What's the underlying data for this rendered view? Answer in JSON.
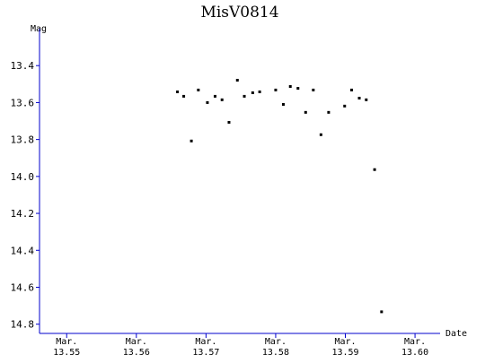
{
  "chart_data": {
    "type": "scatter",
    "title": "MisV0814",
    "ylabel": "Mag",
    "xlabel": "Date",
    "color": "#000000",
    "axis_color": "#0000cc",
    "invert_y": true,
    "xlim": [
      13.5461,
      13.6036
    ],
    "ylim": [
      13.2,
      14.85
    ],
    "xticks": [
      {
        "value": 13.55,
        "label": "Mar.\n13.55"
      },
      {
        "value": 13.56,
        "label": "Mar.\n13.56"
      },
      {
        "value": 13.57,
        "label": "Mar.\n13.57"
      },
      {
        "value": 13.58,
        "label": "Mar.\n13.58"
      },
      {
        "value": 13.59,
        "label": "Mar.\n13.59"
      },
      {
        "value": 13.6,
        "label": "Mar.\n13.60"
      }
    ],
    "yticks": [
      {
        "value": 13.4,
        "label": "13.4"
      },
      {
        "value": 13.6,
        "label": "13.6"
      },
      {
        "value": 13.8,
        "label": "13.8"
      },
      {
        "value": 14.0,
        "label": "14.0"
      },
      {
        "value": 14.2,
        "label": "14.2"
      },
      {
        "value": 14.4,
        "label": "14.4"
      },
      {
        "value": 14.6,
        "label": "14.6"
      },
      {
        "value": 14.8,
        "label": "14.8"
      }
    ],
    "x": [
      13.5659,
      13.5668,
      13.5679,
      13.5689,
      13.5702,
      13.5713,
      13.5723,
      13.5733,
      13.5745,
      13.5755,
      13.5767,
      13.5777,
      13.58,
      13.5811,
      13.5821,
      13.5832,
      13.5843,
      13.5854,
      13.5865,
      13.5876,
      13.5899,
      13.5909,
      13.592,
      13.593,
      13.5942,
      13.5952
    ],
    "values": [
      13.542,
      13.566,
      13.808,
      13.532,
      13.6,
      13.566,
      13.585,
      13.707,
      13.479,
      13.566,
      13.547,
      13.542,
      13.532,
      13.61,
      13.513,
      13.523,
      13.653,
      13.532,
      13.774,
      13.653,
      13.619,
      13.532,
      13.576,
      13.585,
      13.963,
      14.733
    ]
  }
}
